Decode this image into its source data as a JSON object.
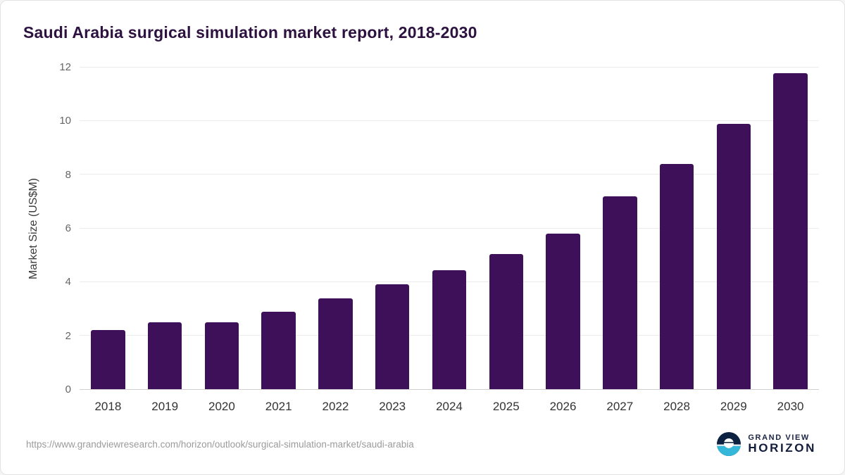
{
  "chart_data": {
    "type": "bar",
    "title": "Saudi Arabia surgical simulation market report, 2018-2030",
    "xlabel": "",
    "ylabel": "Market Size (US$M)",
    "categories": [
      "2018",
      "2019",
      "2020",
      "2021",
      "2022",
      "2023",
      "2024",
      "2025",
      "2026",
      "2027",
      "2028",
      "2029",
      "2030"
    ],
    "values": [
      2.2,
      2.5,
      2.5,
      2.9,
      3.4,
      3.9,
      4.45,
      5.05,
      5.8,
      7.2,
      8.4,
      9.9,
      11.8
    ],
    "ylim": [
      0,
      12
    ],
    "yticks": [
      0,
      2,
      4,
      6,
      8,
      10,
      12
    ],
    "grid": "horizontal",
    "legend": "none",
    "bar_color": "#3d1059"
  },
  "footer": {
    "source_url": "https://www.grandviewresearch.com/horizon/outlook/surgical-simulation-market/saudi-arabia",
    "logo": {
      "line1": "GRAND VIEW",
      "line2": "HORIZON",
      "icon": "horizon-sun-icon",
      "icon_dark": "#0d2240",
      "icon_teal": "#35b7d9"
    }
  }
}
